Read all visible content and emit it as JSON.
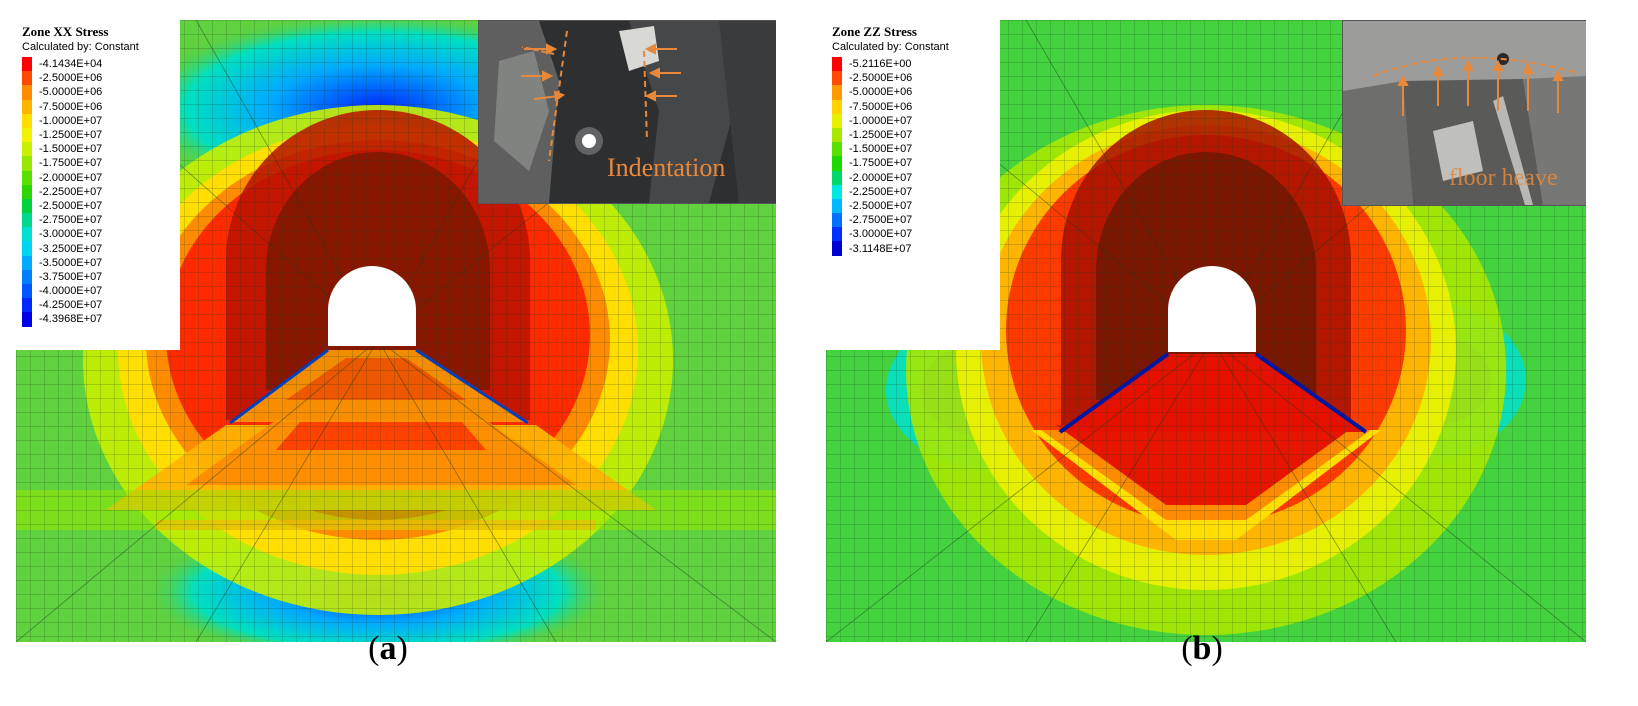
{
  "figure": {
    "panel_a": {
      "legend": {
        "title": "Zone XX Stress",
        "subtitle": "Calculated by: Constant",
        "entries": [
          {
            "label": "-4.1434E+04",
            "color": "#ff0000"
          },
          {
            "label": "-2.5000E+06",
            "color": "#ff4a00"
          },
          {
            "label": "-5.0000E+06",
            "color": "#ff8c00"
          },
          {
            "label": "-7.5000E+06",
            "color": "#ffb400"
          },
          {
            "label": "-1.0000E+07",
            "color": "#ffde00"
          },
          {
            "label": "-1.2500E+07",
            "color": "#f2f200"
          },
          {
            "label": "-1.5000E+07",
            "color": "#c8f000"
          },
          {
            "label": "-1.7500E+07",
            "color": "#96e800"
          },
          {
            "label": "-2.0000E+07",
            "color": "#5ae000"
          },
          {
            "label": "-2.2500E+07",
            "color": "#2ad800"
          },
          {
            "label": "-2.5000E+07",
            "color": "#00d23c"
          },
          {
            "label": "-2.7500E+07",
            "color": "#00d890"
          },
          {
            "label": "-3.0000E+07",
            "color": "#00e0d0"
          },
          {
            "label": "-3.2500E+07",
            "color": "#00d4f4"
          },
          {
            "label": "-3.5000E+07",
            "color": "#00aaff"
          },
          {
            "label": "-3.7500E+07",
            "color": "#0080ff"
          },
          {
            "label": "-4.0000E+07",
            "color": "#0056ff"
          },
          {
            "label": "-4.2500E+07",
            "color": "#0028ff"
          },
          {
            "label": "-4.3968E+07",
            "color": "#0000e6"
          }
        ]
      },
      "photo_label": "Indentation",
      "caption_letter": "a"
    },
    "panel_b": {
      "legend": {
        "title": "Zone ZZ Stress",
        "subtitle": "Calculated by: Constant",
        "entries": [
          {
            "label": "-5.2116E+00",
            "color": "#ff0000"
          },
          {
            "label": "-2.5000E+06",
            "color": "#ff4a00"
          },
          {
            "label": "-5.0000E+06",
            "color": "#ff9a00"
          },
          {
            "label": "-7.5000E+06",
            "color": "#ffd400"
          },
          {
            "label": "-1.0000E+07",
            "color": "#e6f000"
          },
          {
            "label": "-1.2500E+07",
            "color": "#a8e800"
          },
          {
            "label": "-1.5000E+07",
            "color": "#5ae000"
          },
          {
            "label": "-1.7500E+07",
            "color": "#1ed800"
          },
          {
            "label": "-2.0000E+07",
            "color": "#00d86e"
          },
          {
            "label": "-2.2500E+07",
            "color": "#00e8e0"
          },
          {
            "label": "-2.5000E+07",
            "color": "#00b8ff"
          },
          {
            "label": "-2.7500E+07",
            "color": "#0070ff"
          },
          {
            "label": "-3.0000E+07",
            "color": "#0030ff"
          },
          {
            "label": "-3.1148E+07",
            "color": "#0000d0"
          }
        ]
      },
      "photo_label": "floor heave",
      "caption_letter": "b"
    },
    "colors": {
      "photo_accent": "#e8883a",
      "mesh_line": "#1a3a1a"
    }
  }
}
